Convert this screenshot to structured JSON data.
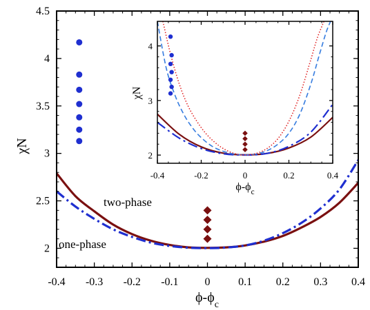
{
  "chart_data": [
    {
      "type": "line",
      "panel": "main",
      "xlabel": "ϕ-ϕ",
      "xlabel_sub": "c",
      "ylabel": "χN",
      "xlim": [
        -0.4,
        0.4
      ],
      "ylim": [
        1.8,
        4.5
      ],
      "x_ticks": [
        -0.4,
        -0.3,
        -0.2,
        -0.1,
        0,
        0.1,
        0.2,
        0.3,
        0.4
      ],
      "x_tick_labels": [
        "-0.4",
        "-0.3",
        "-0.2",
        "-0.1",
        "0",
        "0.1",
        "0.2",
        "0.3",
        "0.4"
      ],
      "y_ticks": [
        2,
        2.5,
        3,
        3.5,
        4,
        4.5
      ],
      "y_tick_labels": [
        "2",
        "2.5",
        "3",
        "3.5",
        "4",
        "4.5"
      ],
      "annotations": [
        "two-phase",
        "one-phase"
      ],
      "colors": {
        "dark_red": "#7a1010",
        "blue": "#1f2fd0",
        "diamond": "#7a1010",
        "circle": "#1f2fd0"
      },
      "series": [
        {
          "style": "solid",
          "color": "#7a1010",
          "x": [
            -0.4,
            -0.35,
            -0.3,
            -0.25,
            -0.2,
            -0.15,
            -0.1,
            -0.05,
            0,
            0.05,
            0.1,
            0.15,
            0.2,
            0.25,
            0.3,
            0.35,
            0.4
          ],
          "y": [
            2.79,
            2.55,
            2.39,
            2.25,
            2.15,
            2.08,
            2.035,
            2.01,
            2.005,
            2.01,
            2.03,
            2.07,
            2.13,
            2.22,
            2.33,
            2.48,
            2.69
          ]
        },
        {
          "style": "dash-dot",
          "color": "#1f2fd0",
          "x": [
            -0.4,
            -0.35,
            -0.3,
            -0.25,
            -0.2,
            -0.15,
            -0.1,
            -0.05,
            0,
            0.05,
            0.1,
            0.15,
            0.2,
            0.25,
            0.3,
            0.35,
            0.4
          ],
          "y": [
            2.6,
            2.44,
            2.31,
            2.2,
            2.12,
            2.06,
            2.025,
            2.006,
            2.002,
            2.008,
            2.03,
            2.08,
            2.16,
            2.27,
            2.42,
            2.62,
            2.93
          ]
        }
      ],
      "markers": [
        {
          "shape": "circle",
          "color": "#1f2fd0",
          "x": [
            -0.34,
            -0.34,
            -0.34,
            -0.34,
            -0.34,
            -0.34,
            -0.34
          ],
          "y": [
            4.17,
            3.83,
            3.67,
            3.52,
            3.38,
            3.25,
            3.13
          ]
        },
        {
          "shape": "diamond",
          "color": "#7a1010",
          "x": [
            0,
            0,
            0,
            0
          ],
          "y": [
            2.4,
            2.3,
            2.2,
            2.1
          ]
        }
      ]
    },
    {
      "type": "line",
      "panel": "inset",
      "xlabel": "ϕ-ϕ",
      "xlabel_sub": "c",
      "ylabel": "χN",
      "xlim": [
        -0.4,
        0.4
      ],
      "ylim": [
        1.85,
        4.45
      ],
      "x_ticks": [
        -0.4,
        -0.2,
        0,
        0.2,
        0.4
      ],
      "x_tick_labels": [
        "-0.4",
        "-0.2",
        "0",
        "0.2",
        "0.4"
      ],
      "y_ticks": [
        2,
        3,
        4
      ],
      "y_tick_labels": [
        "2",
        "3",
        "4"
      ],
      "series": [
        {
          "style": "solid",
          "color": "#7a1010",
          "x": [
            -0.4,
            -0.3,
            -0.2,
            -0.1,
            0,
            0.1,
            0.2,
            0.3,
            0.4
          ],
          "y": [
            2.75,
            2.38,
            2.15,
            2.035,
            2.005,
            2.03,
            2.13,
            2.33,
            2.69
          ]
        },
        {
          "style": "dash-dot",
          "color": "#1f2fd0",
          "x": [
            -0.4,
            -0.3,
            -0.2,
            -0.1,
            0,
            0.1,
            0.2,
            0.3,
            0.4
          ],
          "y": [
            2.6,
            2.31,
            2.12,
            2.025,
            2.002,
            2.03,
            2.16,
            2.42,
            2.93
          ]
        },
        {
          "style": "dashed",
          "color": "#3a7fe0",
          "x": [
            -0.4,
            -0.36,
            -0.32,
            -0.28,
            -0.24,
            -0.2,
            -0.15,
            -0.1,
            -0.05,
            0,
            0.05,
            0.1,
            0.15,
            0.2,
            0.25,
            0.3,
            0.34,
            0.37,
            0.39
          ],
          "y": [
            4.45,
            3.6,
            3.1,
            2.75,
            2.5,
            2.32,
            2.16,
            2.07,
            2.02,
            2.005,
            2.02,
            2.08,
            2.2,
            2.4,
            2.75,
            3.3,
            3.85,
            4.25,
            4.45
          ]
        },
        {
          "style": "dotted",
          "color": "#e02020",
          "x": [
            -0.375,
            -0.34,
            -0.3,
            -0.26,
            -0.22,
            -0.18,
            -0.14,
            -0.1,
            -0.05,
            0,
            0.05,
            0.1,
            0.15,
            0.2,
            0.25,
            0.3,
            0.33,
            0.36
          ],
          "y": [
            4.45,
            3.85,
            3.3,
            2.9,
            2.62,
            2.4,
            2.24,
            2.12,
            2.03,
            2.0,
            2.03,
            2.12,
            2.3,
            2.62,
            3.1,
            3.75,
            4.15,
            4.45
          ]
        }
      ],
      "markers": [
        {
          "shape": "circle",
          "color": "#1f2fd0",
          "x": [
            -0.34,
            -0.335,
            -0.34,
            -0.335,
            -0.34,
            -0.335,
            -0.34
          ],
          "y": [
            4.17,
            3.83,
            3.67,
            3.52,
            3.38,
            3.25,
            3.13
          ]
        },
        {
          "shape": "diamond",
          "color": "#7a1010",
          "x": [
            0,
            0,
            0,
            0
          ],
          "y": [
            2.4,
            2.3,
            2.2,
            2.1
          ]
        }
      ]
    }
  ]
}
